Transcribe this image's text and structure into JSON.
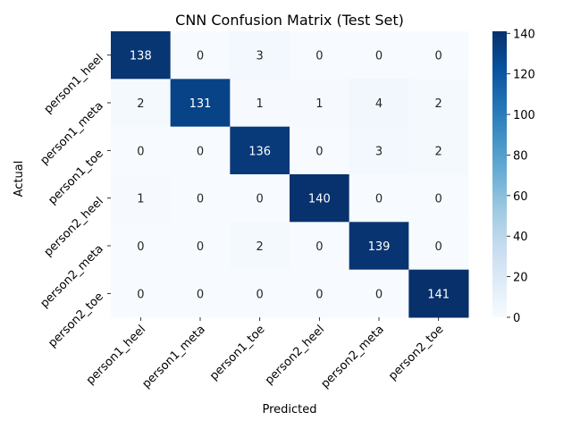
{
  "chart_data": {
    "type": "heatmap",
    "title": "CNN Confusion Matrix (Test Set)",
    "xlabel": "Predicted",
    "ylabel": "Actual",
    "x_categories": [
      "person1_heel",
      "person1_meta",
      "person1_toe",
      "person2_heel",
      "person2_meta",
      "person2_toe"
    ],
    "y_categories": [
      "person1_heel",
      "person1_meta",
      "person1_toe",
      "person2_heel",
      "person2_meta",
      "person2_toe"
    ],
    "values": [
      [
        138,
        0,
        3,
        0,
        0,
        0
      ],
      [
        2,
        131,
        1,
        1,
        4,
        2
      ],
      [
        0,
        0,
        136,
        0,
        3,
        2
      ],
      [
        1,
        0,
        0,
        140,
        0,
        0
      ],
      [
        0,
        0,
        2,
        0,
        139,
        0
      ],
      [
        0,
        0,
        0,
        0,
        0,
        141
      ]
    ],
    "colorbar": {
      "min": 0,
      "max": 141,
      "ticks": [
        0,
        20,
        40,
        60,
        80,
        100,
        120,
        140
      ],
      "colormap": "Blues",
      "low_color": "#f7fbff",
      "high_color": "#08306b"
    }
  }
}
